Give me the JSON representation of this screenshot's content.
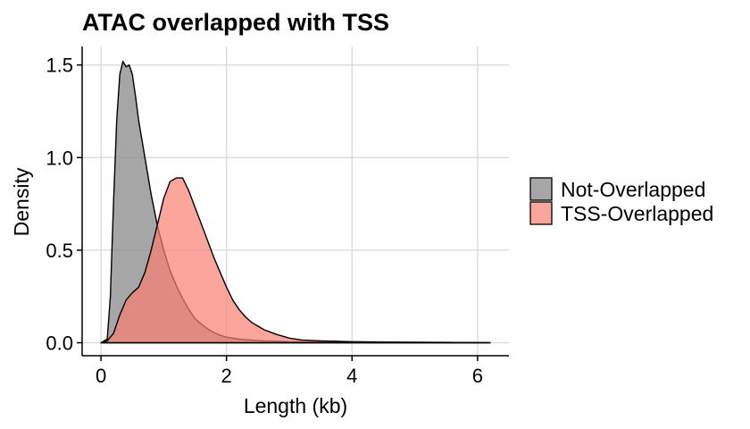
{
  "chart_data": {
    "type": "area",
    "title": "ATAC overlapped with TSS",
    "xlabel": "Length (kb)",
    "ylabel": "Density",
    "xlim": [
      -0.3,
      6.5
    ],
    "ylim": [
      -0.07,
      1.6
    ],
    "x_ticks": [
      0,
      2,
      4,
      6
    ],
    "y_ticks": [
      0.0,
      0.5,
      1.0,
      1.5
    ],
    "x_tick_labels": [
      "0",
      "2",
      "4",
      "6"
    ],
    "y_tick_labels": [
      "0.0",
      "0.5",
      "1.0",
      "1.5"
    ],
    "grid": true,
    "legend_position": "right",
    "series": [
      {
        "name": "Not-Overlapped",
        "color": "#808080",
        "opacity": 0.7,
        "x": [
          0.0,
          0.1,
          0.15,
          0.2,
          0.25,
          0.3,
          0.35,
          0.4,
          0.45,
          0.5,
          0.55,
          0.6,
          0.7,
          0.8,
          0.9,
          1.0,
          1.1,
          1.2,
          1.3,
          1.4,
          1.5,
          1.6,
          1.7,
          1.8,
          1.9,
          2.0,
          2.2,
          2.4,
          2.6,
          2.8,
          3.0,
          3.5,
          4.0,
          4.5,
          5.0,
          5.5,
          6.0,
          6.2
        ],
        "y": [
          0.0,
          0.02,
          0.25,
          0.75,
          1.2,
          1.45,
          1.52,
          1.49,
          1.5,
          1.45,
          1.33,
          1.2,
          1.0,
          0.8,
          0.63,
          0.5,
          0.39,
          0.31,
          0.24,
          0.18,
          0.13,
          0.1,
          0.075,
          0.055,
          0.04,
          0.03,
          0.02,
          0.014,
          0.01,
          0.008,
          0.006,
          0.004,
          0.003,
          0.002,
          0.002,
          0.001,
          0.001,
          0.0
        ]
      },
      {
        "name": "TSS-Overlapped",
        "color": "#FA8072",
        "opacity": 0.7,
        "x": [
          0.0,
          0.1,
          0.2,
          0.3,
          0.4,
          0.5,
          0.6,
          0.7,
          0.8,
          0.9,
          1.0,
          1.1,
          1.2,
          1.3,
          1.4,
          1.5,
          1.6,
          1.7,
          1.8,
          1.9,
          2.0,
          2.1,
          2.2,
          2.3,
          2.4,
          2.5,
          2.6,
          2.8,
          3.0,
          3.2,
          3.5,
          4.0,
          4.5,
          5.0,
          5.5,
          6.0,
          6.2
        ],
        "y": [
          0.0,
          0.01,
          0.05,
          0.15,
          0.23,
          0.27,
          0.3,
          0.38,
          0.5,
          0.64,
          0.78,
          0.87,
          0.89,
          0.89,
          0.82,
          0.73,
          0.64,
          0.55,
          0.46,
          0.38,
          0.3,
          0.23,
          0.18,
          0.14,
          0.11,
          0.09,
          0.07,
          0.045,
          0.025,
          0.015,
          0.01,
          0.006,
          0.004,
          0.003,
          0.002,
          0.001,
          0.0
        ]
      }
    ]
  }
}
